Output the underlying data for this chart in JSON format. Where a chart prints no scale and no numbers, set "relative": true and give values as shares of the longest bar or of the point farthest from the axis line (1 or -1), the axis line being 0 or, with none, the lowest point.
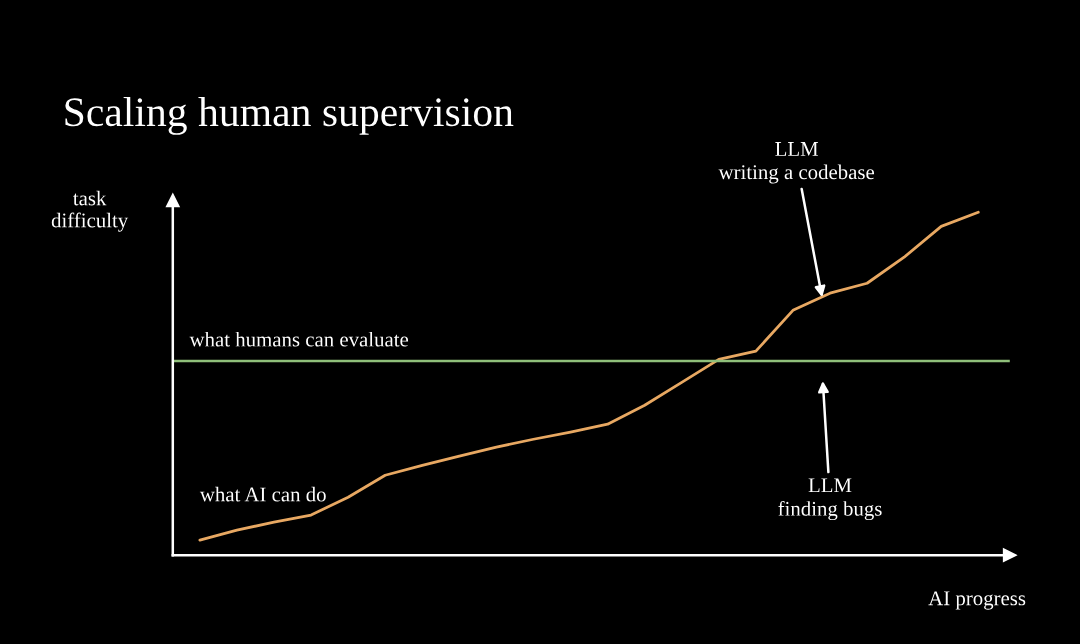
{
  "chart_data": {
    "type": "line",
    "title": "Scaling human supervision",
    "xlabel": "AI progress",
    "ylabel": "task\ndifficulty",
    "relative": true,
    "legend": false,
    "marker": "none",
    "line_style": "solid",
    "categories": [
      null,
      null,
      null,
      null,
      null,
      null,
      null,
      null,
      null,
      null,
      null,
      null,
      null,
      null,
      null,
      null,
      null,
      null,
      null,
      null,
      null,
      null
    ],
    "series": [
      {
        "name": "what AI can do",
        "color": "#e8a862",
        "values": [
          0.044,
          0.073,
          0.096,
          0.117,
          0.169,
          0.233,
          0.262,
          0.289,
          0.315,
          0.338,
          0.359,
          0.382,
          0.437,
          0.504,
          0.571,
          0.595,
          0.714,
          0.764,
          0.793,
          0.869,
          0.959,
          1
        ]
      }
    ],
    "ref_lines": [
      {
        "axis": "y",
        "value": 0.566,
        "label": "what humans can evaluate",
        "color": "#8fbf7a",
        "line_style": "solid"
      }
    ],
    "annotations": [
      "LLM\nwriting a codebase",
      "LLM\nfinding bugs"
    ]
  }
}
